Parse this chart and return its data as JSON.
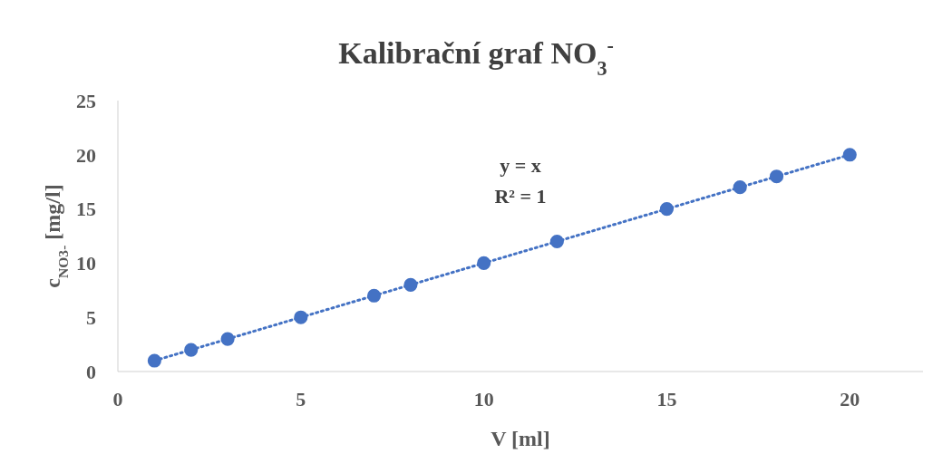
{
  "chart_data": {
    "type": "scatter",
    "title": "Kalibrační graf NO$_{3}$$^{-}$",
    "xlabel": "V [ml]",
    "ylabel": "c$_{NO3-}$ [mg/l]",
    "annotations": [
      "y = x",
      "R² = 1"
    ],
    "series": [
      {
        "color": "#4472c4",
        "marker": "circle",
        "x": [
          1,
          2,
          3,
          5,
          7,
          8,
          10,
          12,
          15,
          17,
          18,
          20
        ],
        "values": [
          1,
          2,
          3,
          5,
          7,
          8,
          10,
          12,
          15,
          17,
          18,
          20
        ]
      },
      {
        "type": "line",
        "color": "#4472c4",
        "line_style": "dotted",
        "marker": "none",
        "x": [
          1,
          20
        ],
        "values": [
          1,
          20
        ]
      }
    ],
    "xlim": [
      0,
      22
    ],
    "xticks": [
      0,
      5,
      10,
      15,
      20
    ],
    "ylim": [
      0,
      25
    ],
    "yticks": [
      0,
      5,
      10,
      15,
      20,
      25
    ],
    "grid": false
  }
}
